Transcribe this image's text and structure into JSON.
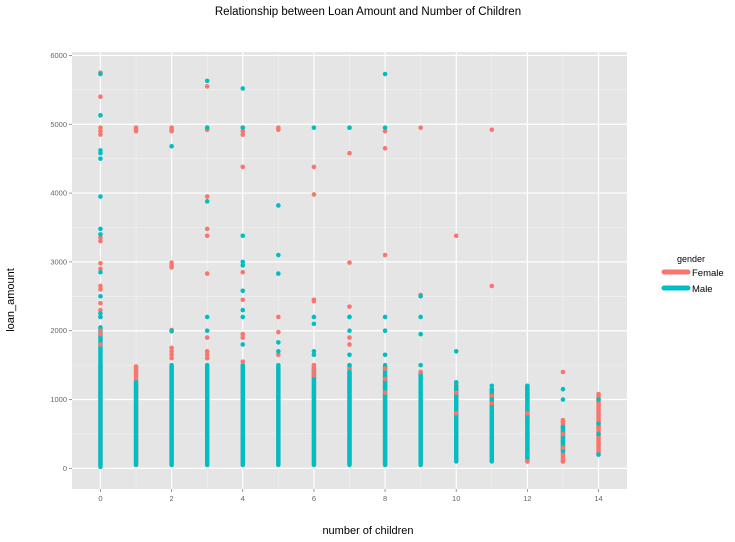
{
  "chart_data": {
    "type": "scatter",
    "title": "Relationship between Loan Amount and Number of Children",
    "xlabel": "number of children",
    "ylabel": "loan_amount",
    "xlim": [
      -0.8,
      14.8
    ],
    "ylim": [
      -300,
      6050
    ],
    "x_ticks": [
      0,
      2,
      4,
      6,
      8,
      10,
      12,
      14
    ],
    "y_ticks": [
      0,
      1000,
      2000,
      3000,
      4000,
      5000,
      6000
    ],
    "grid": true,
    "legend": {
      "title": "gender",
      "position": "right"
    },
    "series": [
      {
        "name": "Female",
        "color": "#F8766D",
        "bands": [
          [
            0,
            50,
            1500
          ],
          [
            1,
            50,
            1480
          ],
          [
            2,
            50,
            1500
          ],
          [
            3,
            50,
            1500
          ],
          [
            4,
            50,
            1500
          ],
          [
            5,
            50,
            1480
          ],
          [
            6,
            50,
            1500
          ],
          [
            7,
            50,
            1500
          ],
          [
            8,
            50,
            1350
          ],
          [
            9,
            50,
            1000
          ],
          [
            10,
            100,
            1250
          ],
          [
            11,
            100,
            1150
          ],
          [
            12,
            100,
            1200
          ],
          [
            13,
            100,
            700
          ],
          [
            14,
            200,
            1050
          ]
        ],
        "points": [
          [
            0,
            5750
          ],
          [
            0,
            5400
          ],
          [
            0,
            4950
          ],
          [
            0,
            4900
          ],
          [
            0,
            4850
          ],
          [
            0,
            3350
          ],
          [
            0,
            3300
          ],
          [
            0,
            2980
          ],
          [
            0,
            2900
          ],
          [
            0,
            2650
          ],
          [
            0,
            2600
          ],
          [
            0,
            2400
          ],
          [
            0,
            2300
          ],
          [
            0,
            2200
          ],
          [
            0,
            2000
          ],
          [
            0,
            1950
          ],
          [
            0,
            1800
          ],
          [
            1,
            4950
          ],
          [
            1,
            4920
          ],
          [
            1,
            4900
          ],
          [
            1,
            1480
          ],
          [
            1,
            1380
          ],
          [
            2,
            4950
          ],
          [
            2,
            4920
          ],
          [
            2,
            4900
          ],
          [
            2,
            2990
          ],
          [
            2,
            2950
          ],
          [
            2,
            2920
          ],
          [
            2,
            2010
          ],
          [
            2,
            1990
          ],
          [
            2,
            1750
          ],
          [
            2,
            1700
          ],
          [
            2,
            1650
          ],
          [
            2,
            1600
          ],
          [
            3,
            5550
          ],
          [
            3,
            4950
          ],
          [
            3,
            4920
          ],
          [
            3,
            3950
          ],
          [
            3,
            3480
          ],
          [
            3,
            3380
          ],
          [
            3,
            2830
          ],
          [
            3,
            1900
          ],
          [
            3,
            1700
          ],
          [
            3,
            1650
          ],
          [
            3,
            1600
          ],
          [
            4,
            4950
          ],
          [
            4,
            4900
          ],
          [
            4,
            4850
          ],
          [
            4,
            4380
          ],
          [
            4,
            2850
          ],
          [
            4,
            2450
          ],
          [
            4,
            1950
          ],
          [
            4,
            1950
          ],
          [
            4,
            1900
          ],
          [
            4,
            1550
          ],
          [
            5,
            4950
          ],
          [
            5,
            4920
          ],
          [
            5,
            2200
          ],
          [
            5,
            1980
          ],
          [
            5,
            1650
          ],
          [
            6,
            4380
          ],
          [
            6,
            3980
          ],
          [
            6,
            2450
          ],
          [
            6,
            2430
          ],
          [
            6,
            1500
          ],
          [
            6,
            1450
          ],
          [
            6,
            1400
          ],
          [
            6,
            1350
          ],
          [
            7,
            4950
          ],
          [
            7,
            4580
          ],
          [
            7,
            2990
          ],
          [
            7,
            2350
          ],
          [
            7,
            2200
          ],
          [
            7,
            1900
          ],
          [
            7,
            1800
          ],
          [
            8,
            4900
          ],
          [
            8,
            4650
          ],
          [
            8,
            3100
          ],
          [
            8,
            1450
          ],
          [
            8,
            1300
          ],
          [
            8,
            1100
          ],
          [
            9,
            4950
          ],
          [
            9,
            2520
          ],
          [
            9,
            1400
          ],
          [
            10,
            3380
          ],
          [
            10,
            1100
          ],
          [
            10,
            800
          ],
          [
            11,
            4920
          ],
          [
            11,
            2650
          ],
          [
            11,
            1050
          ],
          [
            11,
            950
          ],
          [
            12,
            1000
          ],
          [
            12,
            800
          ],
          [
            12,
            100
          ],
          [
            13,
            1400
          ],
          [
            13,
            700
          ],
          [
            13,
            500
          ],
          [
            13,
            300
          ],
          [
            13,
            100
          ],
          [
            14,
            1080
          ],
          [
            14,
            600
          ],
          [
            14,
            300
          ]
        ]
      },
      {
        "name": "Male",
        "color": "#00BFC4",
        "bands": [
          [
            0,
            20,
            2050
          ],
          [
            1,
            50,
            1250
          ],
          [
            2,
            50,
            1500
          ],
          [
            3,
            50,
            1500
          ],
          [
            4,
            50,
            1500
          ],
          [
            5,
            50,
            1500
          ],
          [
            6,
            50,
            1450
          ],
          [
            7,
            50,
            1400
          ],
          [
            8,
            50,
            1500
          ],
          [
            9,
            50,
            1400
          ],
          [
            10,
            100,
            1200
          ],
          [
            11,
            100,
            1150
          ],
          [
            12,
            150,
            1200
          ],
          [
            13,
            250,
            600
          ]
        ],
        "points": [
          [
            0,
            5730
          ],
          [
            0,
            5130
          ],
          [
            0,
            4620
          ],
          [
            0,
            4580
          ],
          [
            0,
            4500
          ],
          [
            0,
            3950
          ],
          [
            0,
            3480
          ],
          [
            0,
            3400
          ],
          [
            0,
            2850
          ],
          [
            0,
            2500
          ],
          [
            0,
            2250
          ],
          [
            0,
            2200
          ],
          [
            2,
            4680
          ],
          [
            2,
            2000
          ],
          [
            3,
            5630
          ],
          [
            3,
            4950
          ],
          [
            3,
            3880
          ],
          [
            3,
            2200
          ],
          [
            3,
            2000
          ],
          [
            4,
            5520
          ],
          [
            4,
            4950
          ],
          [
            4,
            3380
          ],
          [
            4,
            3000
          ],
          [
            4,
            2950
          ],
          [
            4,
            2580
          ],
          [
            4,
            2300
          ],
          [
            4,
            2200
          ],
          [
            4,
            1800
          ],
          [
            5,
            3820
          ],
          [
            5,
            3100
          ],
          [
            5,
            2830
          ],
          [
            5,
            1830
          ],
          [
            5,
            1700
          ],
          [
            6,
            4950
          ],
          [
            6,
            2200
          ],
          [
            6,
            2100
          ],
          [
            6,
            1700
          ],
          [
            6,
            1650
          ],
          [
            7,
            4950
          ],
          [
            7,
            2200
          ],
          [
            7,
            2000
          ],
          [
            7,
            1650
          ],
          [
            7,
            1500
          ],
          [
            8,
            5730
          ],
          [
            8,
            4950
          ],
          [
            8,
            2200
          ],
          [
            8,
            2000
          ],
          [
            8,
            1650
          ],
          [
            9,
            2500
          ],
          [
            9,
            2200
          ],
          [
            9,
            1950
          ],
          [
            9,
            1500
          ],
          [
            10,
            1700
          ],
          [
            10,
            1250
          ],
          [
            10,
            950
          ],
          [
            11,
            1200
          ],
          [
            11,
            1150
          ],
          [
            11,
            1000
          ],
          [
            11,
            700
          ],
          [
            11,
            450
          ],
          [
            12,
            1200
          ],
          [
            12,
            1150
          ],
          [
            12,
            1000
          ],
          [
            12,
            700
          ],
          [
            12,
            500
          ],
          [
            13,
            1150
          ],
          [
            13,
            1000
          ],
          [
            13,
            600
          ],
          [
            13,
            400
          ],
          [
            14,
            1000
          ],
          [
            14,
            650
          ],
          [
            14,
            500
          ],
          [
            14,
            200
          ]
        ]
      }
    ]
  }
}
